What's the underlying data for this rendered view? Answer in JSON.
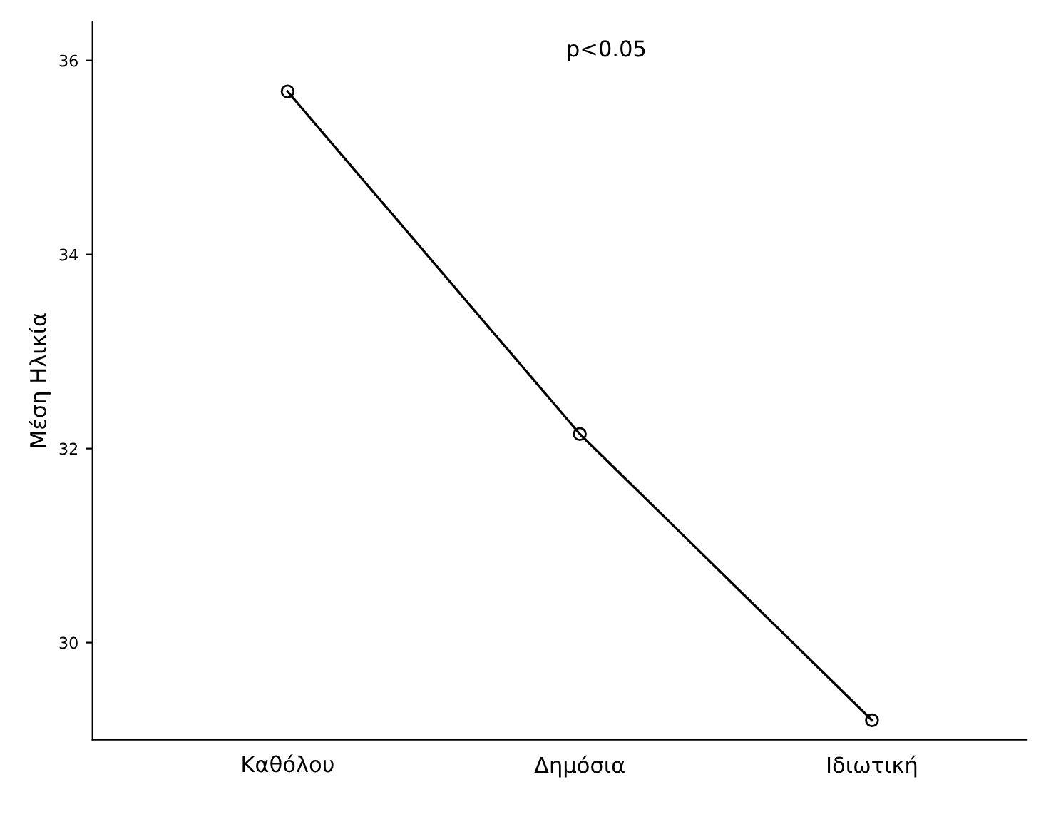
{
  "chart_data": {
    "type": "line",
    "ylabel": "Μέση Ηλικία",
    "categories": [
      "Καθόλου",
      "Δημόσια",
      "Ιδιωτική"
    ],
    "series": [
      {
        "color": "#000000",
        "values": [
          35.68,
          32.15,
          29.2
        ]
      }
    ],
    "ylim": [
      29.0,
      36.4
    ],
    "yticks": [
      30,
      32,
      34,
      36
    ],
    "marker": "circle",
    "line_style": "solid",
    "grid": false,
    "annotations": [
      "p<0.05"
    ]
  }
}
